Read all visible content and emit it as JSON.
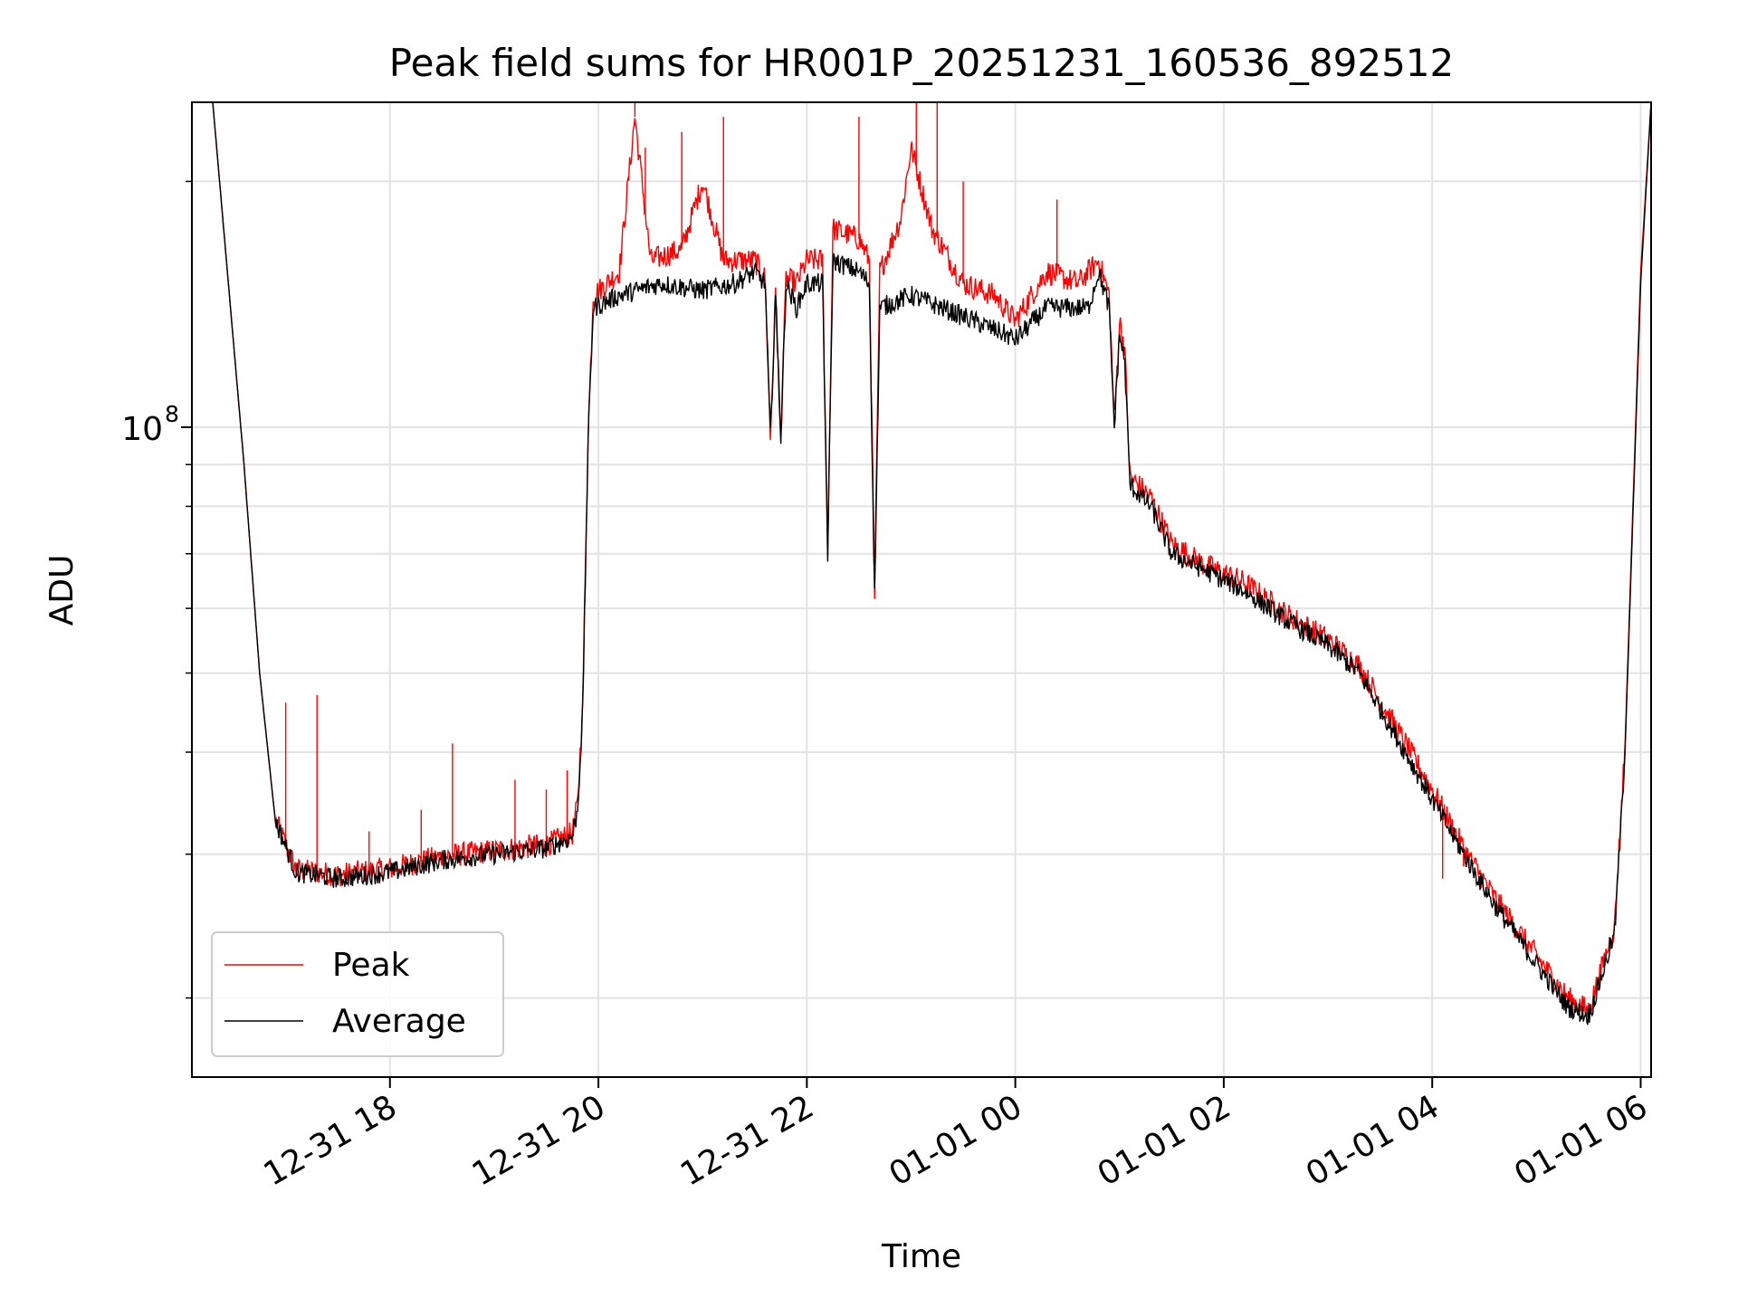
{
  "chart_data": {
    "type": "line",
    "title": "Peak field sums for HR001P_20251231_160536_892512",
    "xlabel": "Time",
    "ylabel": "ADU",
    "yscale": "log",
    "y_major_tick": {
      "value": 100000000,
      "label_base": "10",
      "label_exp": "8"
    },
    "y_minor_ticks": [
      20000000,
      30000000,
      40000000,
      50000000,
      60000000,
      70000000,
      80000000,
      90000000,
      200000000
    ],
    "ylim": [
      16000000,
      250000000
    ],
    "xlim_hours": [
      16.1,
      30.1
    ],
    "x_ticks": [
      {
        "hour": 18,
        "label": "12-31 18"
      },
      {
        "hour": 20,
        "label": "12-31 20"
      },
      {
        "hour": 22,
        "label": "12-31 22"
      },
      {
        "hour": 24,
        "label": "01-01 00"
      },
      {
        "hour": 26,
        "label": "01-01 02"
      },
      {
        "hour": 28,
        "label": "01-01 04"
      },
      {
        "hour": 30,
        "label": "01-01 06"
      }
    ],
    "grid": true,
    "legend_position": "lower-left",
    "x_units": "hours since 2025-12-31 00:00",
    "series": [
      {
        "name": "Average",
        "color": "#000000",
        "points": [
          [
            16.1,
            250000000
          ],
          [
            16.3,
            250000000
          ],
          [
            16.45,
            150000000
          ],
          [
            16.6,
            90000000
          ],
          [
            16.75,
            50000000
          ],
          [
            16.9,
            33000000
          ],
          [
            17.1,
            28500000
          ],
          [
            17.5,
            28000000
          ],
          [
            18.0,
            28500000
          ],
          [
            18.5,
            29500000
          ],
          [
            19.0,
            30000000
          ],
          [
            19.5,
            30500000
          ],
          [
            19.75,
            31500000
          ],
          [
            19.8,
            34000000
          ],
          [
            19.85,
            45000000
          ],
          [
            19.9,
            95000000
          ],
          [
            19.95,
            140000000
          ],
          [
            20.2,
            145000000
          ],
          [
            20.6,
            150000000
          ],
          [
            21.0,
            147000000
          ],
          [
            21.3,
            150000000
          ],
          [
            21.5,
            155000000
          ],
          [
            21.6,
            150000000
          ],
          [
            21.65,
            97000000
          ],
          [
            21.7,
            145000000
          ],
          [
            21.75,
            97000000
          ],
          [
            21.8,
            150000000
          ],
          [
            21.9,
            140000000
          ],
          [
            22.0,
            150000000
          ],
          [
            22.15,
            150000000
          ],
          [
            22.2,
            70000000
          ],
          [
            22.25,
            160000000
          ],
          [
            22.5,
            155000000
          ],
          [
            22.6,
            150000000
          ],
          [
            22.65,
            62000000
          ],
          [
            22.7,
            140000000
          ],
          [
            23.0,
            145000000
          ],
          [
            23.3,
            140000000
          ],
          [
            23.6,
            135000000
          ],
          [
            23.9,
            130000000
          ],
          [
            24.0,
            128000000
          ],
          [
            24.3,
            140000000
          ],
          [
            24.7,
            140000000
          ],
          [
            24.8,
            155000000
          ],
          [
            24.9,
            140000000
          ],
          [
            24.95,
            100000000
          ],
          [
            25.0,
            130000000
          ],
          [
            25.05,
            120000000
          ],
          [
            25.1,
            85000000
          ],
          [
            25.3,
            80000000
          ],
          [
            25.5,
            70000000
          ],
          [
            25.8,
            67000000
          ],
          [
            26.2,
            63000000
          ],
          [
            26.6,
            58000000
          ],
          [
            27.0,
            54000000
          ],
          [
            27.3,
            50000000
          ],
          [
            27.6,
            43000000
          ],
          [
            28.0,
            35000000
          ],
          [
            28.3,
            30000000
          ],
          [
            28.6,
            26000000
          ],
          [
            29.0,
            22000000
          ],
          [
            29.3,
            19500000
          ],
          [
            29.5,
            19000000
          ],
          [
            29.55,
            19800000
          ],
          [
            29.75,
            24000000
          ],
          [
            29.85,
            40000000
          ],
          [
            30.0,
            150000000
          ],
          [
            30.1,
            250000000
          ]
        ]
      },
      {
        "name": "Peak",
        "color": "#ff0000",
        "points": [
          [
            16.1,
            250000000
          ],
          [
            16.3,
            250000000
          ],
          [
            16.45,
            150000000
          ],
          [
            16.6,
            90000000
          ],
          [
            16.75,
            50000000
          ],
          [
            16.9,
            33000000
          ],
          [
            17.1,
            28700000
          ],
          [
            17.5,
            28300000
          ],
          [
            18.0,
            28800000
          ],
          [
            18.5,
            29800000
          ],
          [
            19.0,
            30300000
          ],
          [
            19.5,
            30800000
          ],
          [
            19.75,
            31800000
          ],
          [
            19.8,
            34500000
          ],
          [
            19.85,
            46000000
          ],
          [
            19.9,
            97000000
          ],
          [
            19.95,
            145000000
          ],
          [
            20.2,
            155000000
          ],
          [
            20.35,
            240000000
          ],
          [
            20.5,
            160000000
          ],
          [
            20.8,
            165000000
          ],
          [
            21.0,
            200000000
          ],
          [
            21.2,
            160000000
          ],
          [
            21.5,
            160000000
          ],
          [
            21.6,
            152000000
          ],
          [
            21.65,
            97000000
          ],
          [
            21.7,
            146000000
          ],
          [
            21.75,
            97000000
          ],
          [
            21.8,
            152000000
          ],
          [
            21.9,
            150000000
          ],
          [
            22.0,
            160000000
          ],
          [
            22.15,
            160000000
          ],
          [
            22.2,
            70000000
          ],
          [
            22.25,
            175000000
          ],
          [
            22.5,
            170000000
          ],
          [
            22.6,
            160000000
          ],
          [
            22.65,
            62000000
          ],
          [
            22.7,
            155000000
          ],
          [
            22.9,
            180000000
          ],
          [
            23.0,
            220000000
          ],
          [
            23.2,
            175000000
          ],
          [
            23.5,
            150000000
          ],
          [
            23.8,
            145000000
          ],
          [
            24.0,
            135000000
          ],
          [
            24.3,
            155000000
          ],
          [
            24.6,
            150000000
          ],
          [
            24.8,
            160000000
          ],
          [
            24.9,
            145000000
          ],
          [
            24.95,
            102000000
          ],
          [
            25.0,
            135000000
          ],
          [
            25.05,
            125000000
          ],
          [
            25.1,
            87000000
          ],
          [
            25.3,
            82000000
          ],
          [
            25.5,
            72000000
          ],
          [
            25.8,
            68000000
          ],
          [
            26.2,
            64500000
          ],
          [
            26.6,
            59000000
          ],
          [
            27.0,
            55000000
          ],
          [
            27.3,
            51000000
          ],
          [
            27.6,
            44000000
          ],
          [
            28.0,
            36000000
          ],
          [
            28.3,
            30500000
          ],
          [
            28.6,
            26500000
          ],
          [
            29.0,
            22500000
          ],
          [
            29.3,
            20000000
          ],
          [
            29.5,
            19300000
          ],
          [
            29.55,
            20200000
          ],
          [
            29.75,
            24500000
          ],
          [
            29.85,
            41000000
          ],
          [
            30.0,
            155000000
          ],
          [
            30.1,
            250000000
          ]
        ]
      }
    ],
    "peak_spikes": [
      [
        17.0,
        46000000
      ],
      [
        17.3,
        47000000
      ],
      [
        17.8,
        32000000
      ],
      [
        18.3,
        34000000
      ],
      [
        18.6,
        41000000
      ],
      [
        19.2,
        37000000
      ],
      [
        19.5,
        36000000
      ],
      [
        19.7,
        38000000
      ],
      [
        20.35,
        250000000
      ],
      [
        20.45,
        220000000
      ],
      [
        20.8,
        230000000
      ],
      [
        21.2,
        240000000
      ],
      [
        22.5,
        240000000
      ],
      [
        23.05,
        250000000
      ],
      [
        23.25,
        250000000
      ],
      [
        23.5,
        200000000
      ],
      [
        24.4,
        190000000
      ],
      [
        28.1,
        28000000
      ],
      [
        28.3,
        29000000
      ]
    ]
  }
}
